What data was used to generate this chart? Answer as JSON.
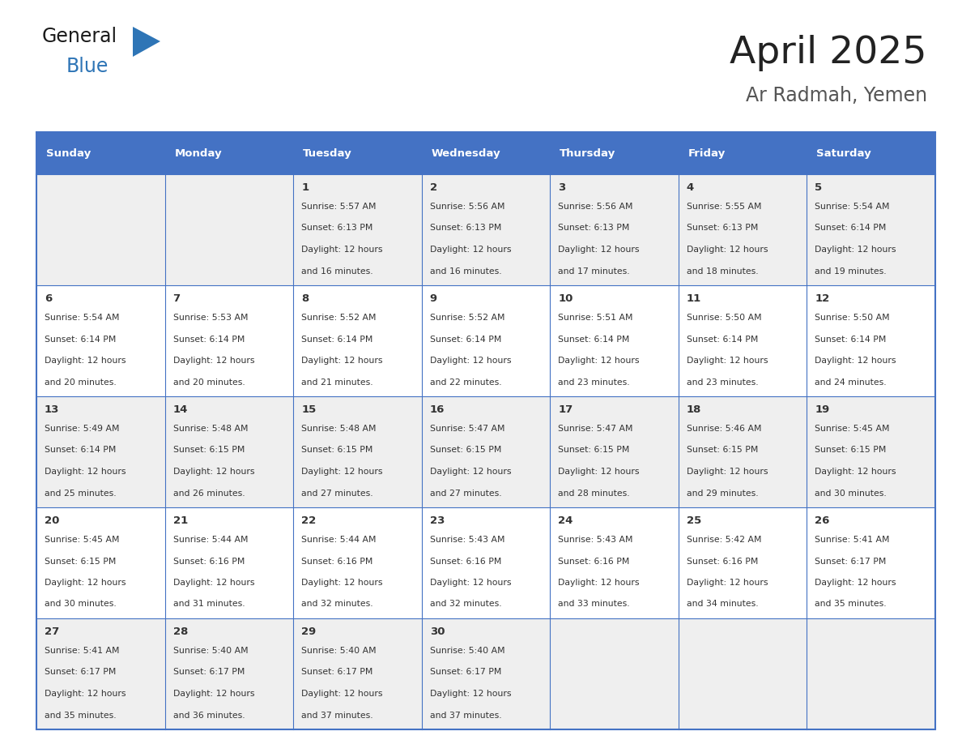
{
  "title": "April 2025",
  "subtitle": "Ar Radmah, Yemen",
  "days_of_week": [
    "Sunday",
    "Monday",
    "Tuesday",
    "Wednesday",
    "Thursday",
    "Friday",
    "Saturday"
  ],
  "header_bg": "#4472C4",
  "header_text_color": "#FFFFFF",
  "cell_bg_odd": "#EFEFEF",
  "cell_bg_even": "#FFFFFF",
  "cell_text_color": "#333333",
  "grid_line_color": "#4472C4",
  "title_color": "#222222",
  "subtitle_color": "#555555",
  "logo_general_color": "#1a1a1a",
  "logo_blue_color": "#2E75B6",
  "calendar": [
    [
      null,
      null,
      {
        "day": 1,
        "sunrise": "5:57 AM",
        "sunset": "6:13 PM",
        "daylight": "12 hours",
        "daylight2": "and 16 minutes."
      },
      {
        "day": 2,
        "sunrise": "5:56 AM",
        "sunset": "6:13 PM",
        "daylight": "12 hours",
        "daylight2": "and 16 minutes."
      },
      {
        "day": 3,
        "sunrise": "5:56 AM",
        "sunset": "6:13 PM",
        "daylight": "12 hours",
        "daylight2": "and 17 minutes."
      },
      {
        "day": 4,
        "sunrise": "5:55 AM",
        "sunset": "6:13 PM",
        "daylight": "12 hours",
        "daylight2": "and 18 minutes."
      },
      {
        "day": 5,
        "sunrise": "5:54 AM",
        "sunset": "6:14 PM",
        "daylight": "12 hours",
        "daylight2": "and 19 minutes."
      }
    ],
    [
      {
        "day": 6,
        "sunrise": "5:54 AM",
        "sunset": "6:14 PM",
        "daylight": "12 hours",
        "daylight2": "and 20 minutes."
      },
      {
        "day": 7,
        "sunrise": "5:53 AM",
        "sunset": "6:14 PM",
        "daylight": "12 hours",
        "daylight2": "and 20 minutes."
      },
      {
        "day": 8,
        "sunrise": "5:52 AM",
        "sunset": "6:14 PM",
        "daylight": "12 hours",
        "daylight2": "and 21 minutes."
      },
      {
        "day": 9,
        "sunrise": "5:52 AM",
        "sunset": "6:14 PM",
        "daylight": "12 hours",
        "daylight2": "and 22 minutes."
      },
      {
        "day": 10,
        "sunrise": "5:51 AM",
        "sunset": "6:14 PM",
        "daylight": "12 hours",
        "daylight2": "and 23 minutes."
      },
      {
        "day": 11,
        "sunrise": "5:50 AM",
        "sunset": "6:14 PM",
        "daylight": "12 hours",
        "daylight2": "and 23 minutes."
      },
      {
        "day": 12,
        "sunrise": "5:50 AM",
        "sunset": "6:14 PM",
        "daylight": "12 hours",
        "daylight2": "and 24 minutes."
      }
    ],
    [
      {
        "day": 13,
        "sunrise": "5:49 AM",
        "sunset": "6:14 PM",
        "daylight": "12 hours",
        "daylight2": "and 25 minutes."
      },
      {
        "day": 14,
        "sunrise": "5:48 AM",
        "sunset": "6:15 PM",
        "daylight": "12 hours",
        "daylight2": "and 26 minutes."
      },
      {
        "day": 15,
        "sunrise": "5:48 AM",
        "sunset": "6:15 PM",
        "daylight": "12 hours",
        "daylight2": "and 27 minutes."
      },
      {
        "day": 16,
        "sunrise": "5:47 AM",
        "sunset": "6:15 PM",
        "daylight": "12 hours",
        "daylight2": "and 27 minutes."
      },
      {
        "day": 17,
        "sunrise": "5:47 AM",
        "sunset": "6:15 PM",
        "daylight": "12 hours",
        "daylight2": "and 28 minutes."
      },
      {
        "day": 18,
        "sunrise": "5:46 AM",
        "sunset": "6:15 PM",
        "daylight": "12 hours",
        "daylight2": "and 29 minutes."
      },
      {
        "day": 19,
        "sunrise": "5:45 AM",
        "sunset": "6:15 PM",
        "daylight": "12 hours",
        "daylight2": "and 30 minutes."
      }
    ],
    [
      {
        "day": 20,
        "sunrise": "5:45 AM",
        "sunset": "6:15 PM",
        "daylight": "12 hours",
        "daylight2": "and 30 minutes."
      },
      {
        "day": 21,
        "sunrise": "5:44 AM",
        "sunset": "6:16 PM",
        "daylight": "12 hours",
        "daylight2": "and 31 minutes."
      },
      {
        "day": 22,
        "sunrise": "5:44 AM",
        "sunset": "6:16 PM",
        "daylight": "12 hours",
        "daylight2": "and 32 minutes."
      },
      {
        "day": 23,
        "sunrise": "5:43 AM",
        "sunset": "6:16 PM",
        "daylight": "12 hours",
        "daylight2": "and 32 minutes."
      },
      {
        "day": 24,
        "sunrise": "5:43 AM",
        "sunset": "6:16 PM",
        "daylight": "12 hours",
        "daylight2": "and 33 minutes."
      },
      {
        "day": 25,
        "sunrise": "5:42 AM",
        "sunset": "6:16 PM",
        "daylight": "12 hours",
        "daylight2": "and 34 minutes."
      },
      {
        "day": 26,
        "sunrise": "5:41 AM",
        "sunset": "6:17 PM",
        "daylight": "12 hours",
        "daylight2": "and 35 minutes."
      }
    ],
    [
      {
        "day": 27,
        "sunrise": "5:41 AM",
        "sunset": "6:17 PM",
        "daylight": "12 hours",
        "daylight2": "and 35 minutes."
      },
      {
        "day": 28,
        "sunrise": "5:40 AM",
        "sunset": "6:17 PM",
        "daylight": "12 hours",
        "daylight2": "and 36 minutes."
      },
      {
        "day": 29,
        "sunrise": "5:40 AM",
        "sunset": "6:17 PM",
        "daylight": "12 hours",
        "daylight2": "and 37 minutes."
      },
      {
        "day": 30,
        "sunrise": "5:40 AM",
        "sunset": "6:17 PM",
        "daylight": "12 hours",
        "daylight2": "and 37 minutes."
      },
      null,
      null,
      null
    ]
  ]
}
